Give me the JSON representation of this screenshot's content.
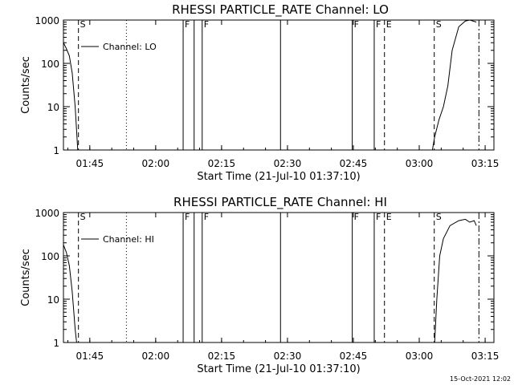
{
  "footer_timestamp": "15-Oct-2021 12:02",
  "chart_data": [
    {
      "type": "line",
      "title": "RHESSI PARTICLE_RATE Channel: LO",
      "xlabel": "Start Time (21-Jul-10 01:37:10)",
      "ylabel": "Counts/sec",
      "y_scale": "log",
      "ylim": [
        1,
        1000
      ],
      "y_ticks": [
        {
          "value": 1,
          "label": "1"
        },
        {
          "value": 10,
          "label": "10"
        },
        {
          "value": 100,
          "label": "100"
        },
        {
          "value": 1000,
          "label": "1000"
        }
      ],
      "xlim": [
        "01:39:00",
        "03:17:00"
      ],
      "x_ticks": [
        "01:45",
        "02:00",
        "02:15",
        "02:30",
        "02:45",
        "03:00",
        "03:15"
      ],
      "legend": {
        "label": "Channel: LO",
        "placement": "top-left"
      },
      "series": [
        {
          "name": "Channel: LO",
          "segments": [
            [
              [
                "01:39:00",
                300
              ],
              [
                "01:39:40",
                220
              ],
              [
                "01:40:20",
                150
              ],
              [
                "01:41:00",
                60
              ],
              [
                "01:41:40",
                10
              ],
              [
                "01:42:15",
                1
              ]
            ],
            [
              [
                "03:02:00",
                1
              ],
              [
                "03:03:00",
                1
              ],
              [
                "03:03:30",
                2
              ],
              [
                "03:04:30",
                5
              ],
              [
                "03:05:30",
                10
              ],
              [
                "03:06:30",
                30
              ],
              [
                "03:07:30",
                200
              ],
              [
                "03:09:00",
                700
              ],
              [
                "03:10:30",
                950
              ],
              [
                "03:11:30",
                1000
              ],
              [
                "03:13:00",
                900
              ]
            ]
          ]
        }
      ],
      "markers": [
        {
          "time": "01:42:25",
          "label": "S",
          "style": "dashed"
        },
        {
          "time": "01:53:20",
          "label": "",
          "style": "dotted"
        },
        {
          "time": "02:06:15",
          "label": "F",
          "style": "solid"
        },
        {
          "time": "02:08:45",
          "label": "",
          "style": "solid"
        },
        {
          "time": "02:10:35",
          "label": "F",
          "style": "solid"
        },
        {
          "time": "02:28:25",
          "label": "",
          "style": "solid"
        },
        {
          "time": "02:44:45",
          "label": "F",
          "style": "solid"
        },
        {
          "time": "02:49:45",
          "label": "F",
          "style": "solid"
        },
        {
          "time": "02:52:05",
          "label": "E",
          "style": "dashed"
        },
        {
          "time": "03:03:25",
          "label": "S",
          "style": "dashed"
        },
        {
          "time": "03:13:35",
          "label": "",
          "style": "dashdot"
        }
      ]
    },
    {
      "type": "line",
      "title": "RHESSI PARTICLE_RATE Channel: HI",
      "xlabel": "Start Time (21-Jul-10 01:37:10)",
      "ylabel": "Counts/sec",
      "y_scale": "log",
      "ylim": [
        1,
        1000
      ],
      "y_ticks": [
        {
          "value": 1,
          "label": "1"
        },
        {
          "value": 10,
          "label": "10"
        },
        {
          "value": 100,
          "label": "100"
        },
        {
          "value": 1000,
          "label": "1000"
        }
      ],
      "xlim": [
        "01:39:00",
        "03:17:00"
      ],
      "x_ticks": [
        "01:45",
        "02:00",
        "02:15",
        "02:30",
        "02:45",
        "03:00",
        "03:15"
      ],
      "legend": {
        "label": "Channel: HI",
        "placement": "top-left"
      },
      "series": [
        {
          "name": "Channel: HI",
          "segments": [
            [
              [
                "01:39:00",
                180
              ],
              [
                "01:39:40",
                120
              ],
              [
                "01:40:20",
                60
              ],
              [
                "01:41:00",
                15
              ],
              [
                "01:41:40",
                2
              ],
              [
                "01:42:00",
                1
              ]
            ],
            [
              [
                "03:03:30",
                1
              ],
              [
                "03:04:00",
                10
              ],
              [
                "03:04:40",
                100
              ],
              [
                "03:05:30",
                250
              ],
              [
                "03:07:00",
                500
              ],
              [
                "03:09:00",
                650
              ],
              [
                "03:10:30",
                700
              ],
              [
                "03:11:30",
                600
              ],
              [
                "03:12:30",
                650
              ],
              [
                "03:13:00",
                500
              ]
            ]
          ]
        }
      ],
      "markers": [
        {
          "time": "01:42:25",
          "label": "S",
          "style": "dashed"
        },
        {
          "time": "01:53:20",
          "label": "",
          "style": "dotted"
        },
        {
          "time": "02:06:15",
          "label": "F",
          "style": "solid"
        },
        {
          "time": "02:08:45",
          "label": "",
          "style": "solid"
        },
        {
          "time": "02:10:35",
          "label": "F",
          "style": "solid"
        },
        {
          "time": "02:28:25",
          "label": "",
          "style": "solid"
        },
        {
          "time": "02:44:45",
          "label": "F",
          "style": "solid"
        },
        {
          "time": "02:49:45",
          "label": "F",
          "style": "solid"
        },
        {
          "time": "02:52:05",
          "label": "E",
          "style": "dashed"
        },
        {
          "time": "03:03:25",
          "label": "S",
          "style": "dashed"
        },
        {
          "time": "03:13:35",
          "label": "",
          "style": "dashdot"
        }
      ]
    }
  ]
}
